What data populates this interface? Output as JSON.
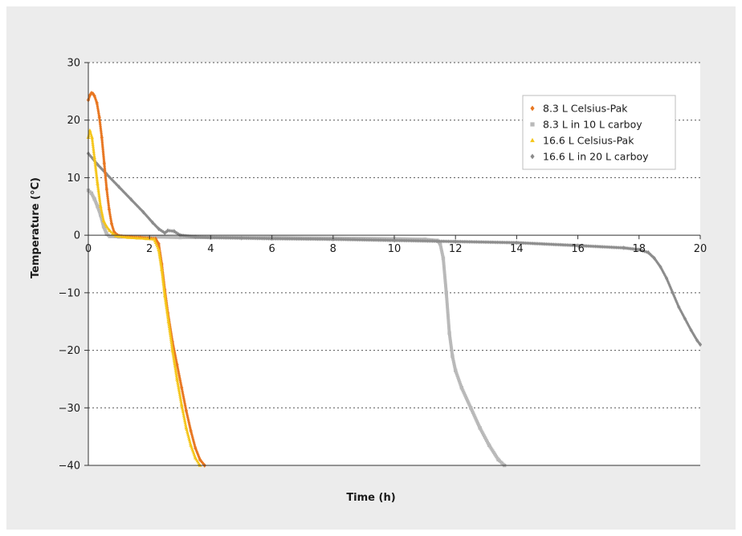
{
  "chart_data": {
    "type": "scatter",
    "title": "",
    "xlabel": "Time (h)",
    "ylabel": "Temperature (°C)",
    "xlim": [
      0,
      20
    ],
    "ylim": [
      -40,
      30
    ],
    "xticks": [
      0,
      2,
      4,
      6,
      8,
      10,
      12,
      14,
      16,
      18,
      20
    ],
    "yticks": [
      30,
      20,
      10,
      0,
      -10,
      -20,
      -30,
      -40
    ],
    "grid": "horizontal dotted",
    "legend_position": "top-right",
    "series": [
      {
        "name": "8.3 L Celsius-Pak",
        "color": "#e87722",
        "marker": "diamond",
        "points": [
          [
            0.0,
            23.5
          ],
          [
            0.05,
            24.3
          ],
          [
            0.1,
            24.7
          ],
          [
            0.15,
            24.6
          ],
          [
            0.2,
            24.2
          ],
          [
            0.28,
            23.0
          ],
          [
            0.36,
            20.5
          ],
          [
            0.44,
            17.0
          ],
          [
            0.52,
            12.5
          ],
          [
            0.6,
            8.0
          ],
          [
            0.68,
            4.5
          ],
          [
            0.76,
            2.0
          ],
          [
            0.84,
            0.6
          ],
          [
            0.95,
            0.0
          ],
          [
            1.1,
            -0.2
          ],
          [
            1.4,
            -0.3
          ],
          [
            1.7,
            -0.4
          ],
          [
            2.0,
            -0.5
          ],
          [
            2.2,
            -0.6
          ],
          [
            2.3,
            -1.5
          ],
          [
            2.4,
            -5.0
          ],
          [
            2.5,
            -9.5
          ],
          [
            2.6,
            -13.5
          ],
          [
            2.75,
            -18.5
          ],
          [
            2.9,
            -22.5
          ],
          [
            3.05,
            -26.5
          ],
          [
            3.2,
            -30.5
          ],
          [
            3.35,
            -34.0
          ],
          [
            3.5,
            -37.0
          ],
          [
            3.65,
            -39.0
          ],
          [
            3.8,
            -40.0
          ]
        ]
      },
      {
        "name": "8.3 L in 10 L carboy",
        "color": "#b9b9b9",
        "marker": "square",
        "points": [
          [
            0.0,
            7.8
          ],
          [
            0.1,
            7.3
          ],
          [
            0.2,
            6.3
          ],
          [
            0.3,
            5.0
          ],
          [
            0.4,
            3.5
          ],
          [
            0.5,
            1.5
          ],
          [
            0.6,
            0.2
          ],
          [
            0.7,
            -0.2
          ],
          [
            1.0,
            -0.3
          ],
          [
            2.0,
            -0.3
          ],
          [
            3.0,
            -0.4
          ],
          [
            4.0,
            -0.4
          ],
          [
            6.0,
            -0.4
          ],
          [
            8.0,
            -0.5
          ],
          [
            10.0,
            -0.6
          ],
          [
            11.0,
            -0.7
          ],
          [
            11.4,
            -0.9
          ],
          [
            11.5,
            -1.5
          ],
          [
            11.6,
            -4.0
          ],
          [
            11.7,
            -10.0
          ],
          [
            11.8,
            -17.0
          ],
          [
            11.9,
            -21.0
          ],
          [
            12.0,
            -23.5
          ],
          [
            12.2,
            -26.5
          ],
          [
            12.5,
            -30.0
          ],
          [
            12.8,
            -33.5
          ],
          [
            13.1,
            -36.5
          ],
          [
            13.4,
            -39.0
          ],
          [
            13.6,
            -40.0
          ]
        ]
      },
      {
        "name": "16.6 L Celsius-Pak",
        "color": "#f5c518",
        "marker": "triangle",
        "points": [
          [
            0.0,
            17.0
          ],
          [
            0.05,
            18.2
          ],
          [
            0.12,
            17.0
          ],
          [
            0.2,
            13.5
          ],
          [
            0.3,
            9.0
          ],
          [
            0.4,
            5.0
          ],
          [
            0.5,
            2.5
          ],
          [
            0.6,
            1.5
          ],
          [
            0.7,
            0.8
          ],
          [
            0.8,
            0.3
          ],
          [
            0.9,
            -0.1
          ],
          [
            1.0,
            -0.2
          ],
          [
            1.3,
            -0.4
          ],
          [
            1.6,
            -0.5
          ],
          [
            1.9,
            -0.6
          ],
          [
            2.15,
            -0.7
          ],
          [
            2.3,
            -2.5
          ],
          [
            2.4,
            -6.0
          ],
          [
            2.5,
            -10.5
          ],
          [
            2.62,
            -15.0
          ],
          [
            2.75,
            -20.0
          ],
          [
            2.9,
            -25.0
          ],
          [
            3.05,
            -29.5
          ],
          [
            3.2,
            -33.5
          ],
          [
            3.35,
            -36.5
          ],
          [
            3.5,
            -38.7
          ],
          [
            3.65,
            -40.0
          ]
        ]
      },
      {
        "name": "16.6 L in 20 L carboy",
        "color": "#8c8c8c",
        "marker": "diamond",
        "points": [
          [
            0.0,
            14.2
          ],
          [
            0.3,
            12.3
          ],
          [
            0.6,
            10.6
          ],
          [
            1.0,
            8.4
          ],
          [
            1.4,
            6.2
          ],
          [
            1.8,
            4.0
          ],
          [
            2.1,
            2.2
          ],
          [
            2.3,
            1.1
          ],
          [
            2.5,
            0.4
          ],
          [
            2.6,
            0.8
          ],
          [
            2.8,
            0.7
          ],
          [
            3.0,
            0.0
          ],
          [
            3.5,
            -0.3
          ],
          [
            4.0,
            -0.4
          ],
          [
            5.0,
            -0.5
          ],
          [
            6.0,
            -0.6
          ],
          [
            8.0,
            -0.7
          ],
          [
            10.0,
            -0.9
          ],
          [
            12.0,
            -1.1
          ],
          [
            14.0,
            -1.3
          ],
          [
            16.0,
            -1.8
          ],
          [
            17.5,
            -2.2
          ],
          [
            18.0,
            -2.5
          ],
          [
            18.3,
            -3.0
          ],
          [
            18.5,
            -4.0
          ],
          [
            18.7,
            -5.5
          ],
          [
            18.9,
            -7.5
          ],
          [
            19.1,
            -10.0
          ],
          [
            19.3,
            -12.5
          ],
          [
            19.5,
            -14.5
          ],
          [
            19.7,
            -16.5
          ],
          [
            19.9,
            -18.3
          ],
          [
            20.0,
            -19.0
          ]
        ]
      }
    ]
  }
}
